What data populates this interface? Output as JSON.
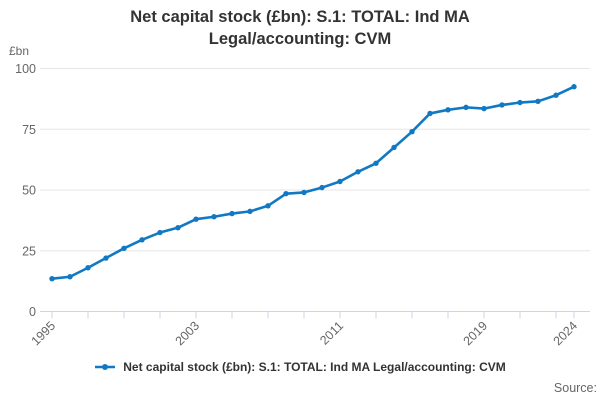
{
  "title": "Net capital stock (£bn): S.1: TOTAL: Ind MA Legal/accounting: CVM",
  "unit_label": "£bn",
  "source_label": "Source:",
  "colors": {
    "line": "#1179c4",
    "grid": "#e6e6e6",
    "axis": "#ccd6eb",
    "title_text": "#333333",
    "axis_text": "#666666"
  },
  "legend": {
    "label": "Net capital stock (£bn): S.1: TOTAL: Ind MA Legal/accounting: CVM"
  },
  "chart_data": {
    "type": "line",
    "title": "Net capital stock (£bn): S.1: TOTAL: Ind MA Legal/accounting: CVM",
    "xlabel": "",
    "ylabel": "£bn",
    "ylim": [
      0,
      100
    ],
    "y_ticks": [
      0,
      25,
      50,
      75,
      100
    ],
    "x_tick_interval_years": 2,
    "x_tick_labels": [
      1995,
      2003,
      2011,
      2019,
      2024
    ],
    "grid": true,
    "legend_position": "bottom",
    "x": [
      1995,
      1996,
      1997,
      1998,
      1999,
      2000,
      2001,
      2002,
      2003,
      2004,
      2005,
      2006,
      2007,
      2008,
      2009,
      2010,
      2011,
      2012,
      2013,
      2014,
      2015,
      2016,
      2017,
      2018,
      2019,
      2020,
      2021,
      2022,
      2023,
      2024
    ],
    "series": [
      {
        "name": "Net capital stock (£bn): S.1: TOTAL: Ind MA Legal/accounting: CVM",
        "values": [
          13.5,
          14.3,
          18,
          22,
          26,
          29.5,
          32.5,
          34.5,
          38,
          39,
          40.3,
          41.2,
          43.5,
          48.5,
          49,
          51,
          53.5,
          57.5,
          61,
          67.5,
          74,
          81.5,
          83,
          84,
          83.5,
          85,
          86,
          86.5,
          89,
          92.5
        ]
      }
    ]
  }
}
